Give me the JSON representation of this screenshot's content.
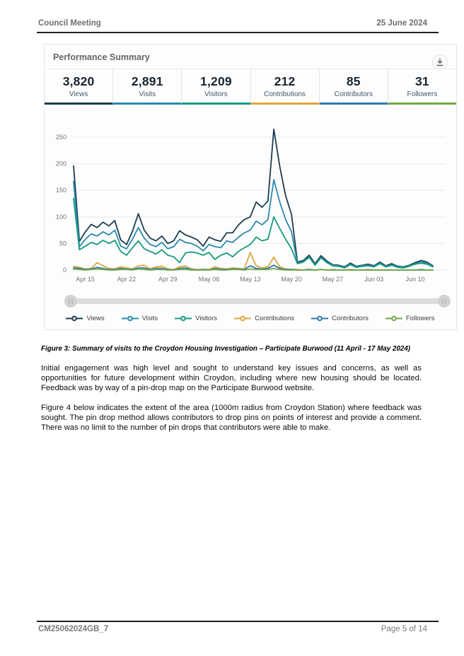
{
  "document": {
    "header": {
      "title": "Council Meeting",
      "date": "25 June 2024"
    },
    "caption": "Figure 3: Summary of visits to the Croydon Housing Investigation – Participate Burwood (11 April - 17 May 2024)",
    "paragraphs": [
      "Initial engagement was high level and sought to understand key issues and concerns, as well as opportunities for future development within Croydon, including where new housing should be located. Feedback was by way of a pin-drop map on the Participate Burwood website.",
      "Figure 4 below indicates the extent of the area (1000m radius from Croydon Station) where feedback was sought. The pin drop method allows contributors to drop pins on points of interest and provide a comment. There was no limit to the number of pin drops that contributors were able to make."
    ],
    "footer": {
      "reference": "CM25062024GB_7",
      "page": "Page 5 of 14"
    }
  },
  "widget": {
    "title": "Performance Summary",
    "icons": [
      {
        "name": "download-icon",
        "glyph": "⤓"
      }
    ],
    "stats": [
      {
        "value": "3,820",
        "label": "Views",
        "color": "#1d3c50"
      },
      {
        "value": "2,891",
        "label": "Visits",
        "color": "#2a8ab0"
      },
      {
        "value": "1,209",
        "label": "Visitors",
        "color": "#169a7e"
      },
      {
        "value": "212",
        "label": "Contributions",
        "color": "#e0a63f"
      },
      {
        "value": "85",
        "label": "Contributors",
        "color": "#2f78ad"
      },
      {
        "value": "31",
        "label": "Followers",
        "color": "#72a848"
      }
    ]
  },
  "chart_data": {
    "type": "line",
    "title": "",
    "xlabel": "",
    "ylabel": "",
    "x_unit": "day",
    "x_start": "Apr 13",
    "x_end": "Jun 13",
    "x_tick_labels": [
      "Apr 15",
      "Apr 22",
      "Apr 29",
      "May 06",
      "May 13",
      "May 20",
      "May 27",
      "Jun 03",
      "Jun 10"
    ],
    "x_tick_day_indices": [
      2,
      9,
      16,
      23,
      30,
      37,
      44,
      51,
      58
    ],
    "yticks": [
      0,
      50,
      100,
      150,
      200,
      250
    ],
    "ylim": [
      0,
      290
    ],
    "grid": "horizontal",
    "legend_position": "bottom",
    "series": [
      {
        "name": "Views",
        "color": "#1d3c50",
        "total_shown": "3,820",
        "values": [
          196,
          54,
          72,
          86,
          80,
          90,
          83,
          93,
          57,
          48,
          73,
          106,
          75,
          60,
          55,
          64,
          50,
          55,
          74,
          66,
          62,
          57,
          45,
          62,
          57,
          54,
          70,
          70,
          85,
          95,
          100,
          128,
          118,
          130,
          265,
          195,
          140,
          105,
          15,
          18,
          28,
          12,
          27,
          17,
          10,
          9,
          6,
          13,
          7,
          9,
          11,
          8,
          15,
          8,
          12,
          7,
          6,
          9,
          14,
          18,
          15,
          8
        ]
      },
      {
        "name": "Visits",
        "color": "#2a8ab0",
        "total_shown": "2,891",
        "values": [
          167,
          44,
          58,
          68,
          64,
          72,
          66,
          75,
          45,
          40,
          58,
          80,
          60,
          48,
          44,
          52,
          40,
          44,
          58,
          52,
          50,
          45,
          36,
          48,
          44,
          42,
          55,
          52,
          62,
          70,
          75,
          92,
          85,
          95,
          170,
          128,
          95,
          72,
          13,
          16,
          25,
          10,
          24,
          15,
          9,
          8,
          5,
          11,
          6,
          8,
          9,
          7,
          13,
          7,
          10,
          6,
          5,
          8,
          12,
          15,
          13,
          7
        ]
      },
      {
        "name": "Visitors",
        "color": "#169a7e",
        "total_shown": "1,209",
        "values": [
          135,
          38,
          45,
          52,
          48,
          56,
          50,
          56,
          35,
          28,
          42,
          55,
          40,
          35,
          30,
          38,
          28,
          25,
          14,
          32,
          34,
          32,
          28,
          33,
          20,
          28,
          32,
          25,
          35,
          42,
          48,
          62,
          55,
          58,
          100,
          78,
          58,
          40,
          12,
          15,
          24,
          9,
          23,
          14,
          8,
          7,
          4,
          10,
          5,
          7,
          8,
          6,
          12,
          6,
          9,
          5,
          4,
          7,
          11,
          13,
          11,
          6
        ]
      },
      {
        "name": "Contributions",
        "color": "#e0a63f",
        "total_shown": "212",
        "values": [
          7,
          5,
          2,
          3,
          14,
          8,
          3,
          2,
          6,
          4,
          2,
          8,
          9,
          2,
          6,
          7,
          2,
          1,
          6,
          8,
          2,
          1,
          1,
          1,
          6,
          3,
          2,
          4,
          3,
          2,
          33,
          8,
          4,
          6,
          24,
          6,
          2,
          1,
          1,
          0,
          1,
          0,
          1,
          0,
          1,
          0,
          0,
          1,
          0,
          0,
          1,
          0,
          0,
          0,
          0,
          0,
          0,
          0,
          0,
          1,
          0,
          0
        ]
      },
      {
        "name": "Contributors",
        "color": "#2f78ad",
        "total_shown": "85",
        "values": [
          4,
          3,
          1,
          2,
          5,
          3,
          1,
          1,
          3,
          2,
          1,
          4,
          4,
          1,
          3,
          3,
          1,
          0,
          3,
          4,
          1,
          0,
          1,
          0,
          3,
          1,
          1,
          2,
          2,
          1,
          8,
          3,
          2,
          3,
          9,
          3,
          1,
          1,
          0,
          0,
          1,
          0,
          1,
          0,
          0,
          0,
          0,
          0,
          0,
          0,
          0,
          0,
          0,
          0,
          0,
          0,
          0,
          0,
          0,
          0,
          0,
          0
        ]
      },
      {
        "name": "Followers",
        "color": "#72a848",
        "total_shown": "31",
        "values": [
          2,
          1,
          0,
          1,
          2,
          1,
          0,
          0,
          1,
          1,
          0,
          2,
          1,
          0,
          1,
          1,
          0,
          0,
          1,
          1,
          0,
          0,
          0,
          0,
          1,
          0,
          0,
          1,
          1,
          0,
          2,
          1,
          1,
          1,
          3,
          1,
          0,
          0,
          0,
          0,
          0,
          0,
          1,
          0,
          0,
          0,
          0,
          0,
          0,
          0,
          0,
          0,
          0,
          0,
          0,
          0,
          0,
          0,
          0,
          1,
          0,
          0
        ]
      }
    ]
  }
}
